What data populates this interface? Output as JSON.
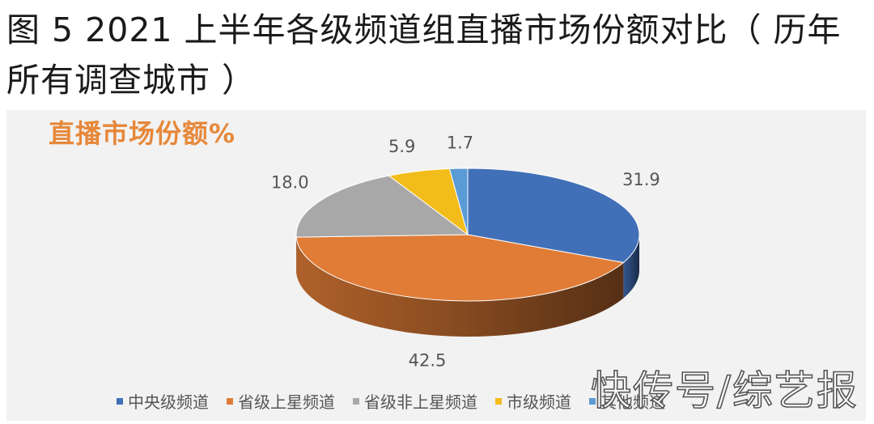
{
  "figure_caption": "图 5 2021 上半年各级频道组直播市场份额对比（ 历年所有调查城市 ）",
  "watermark": "快传号/综艺报",
  "chart_data": {
    "type": "pie",
    "style": "3d",
    "title": "直播市场份额%",
    "categories": [
      "中央级频道",
      "省级上星频道",
      "省级非上星频道",
      "市级频道",
      "其他频道"
    ],
    "values": [
      31.9,
      42.5,
      18.0,
      5.9,
      1.7
    ],
    "labels": [
      "31.9",
      "42.5",
      "18.0",
      "5.9",
      "1.7"
    ],
    "colors": [
      "#4270b8",
      "#e07c36",
      "#a8a8a8",
      "#f2bc1a",
      "#5b9bd5"
    ],
    "start_angle_deg": 0,
    "legend_position": "bottom"
  }
}
